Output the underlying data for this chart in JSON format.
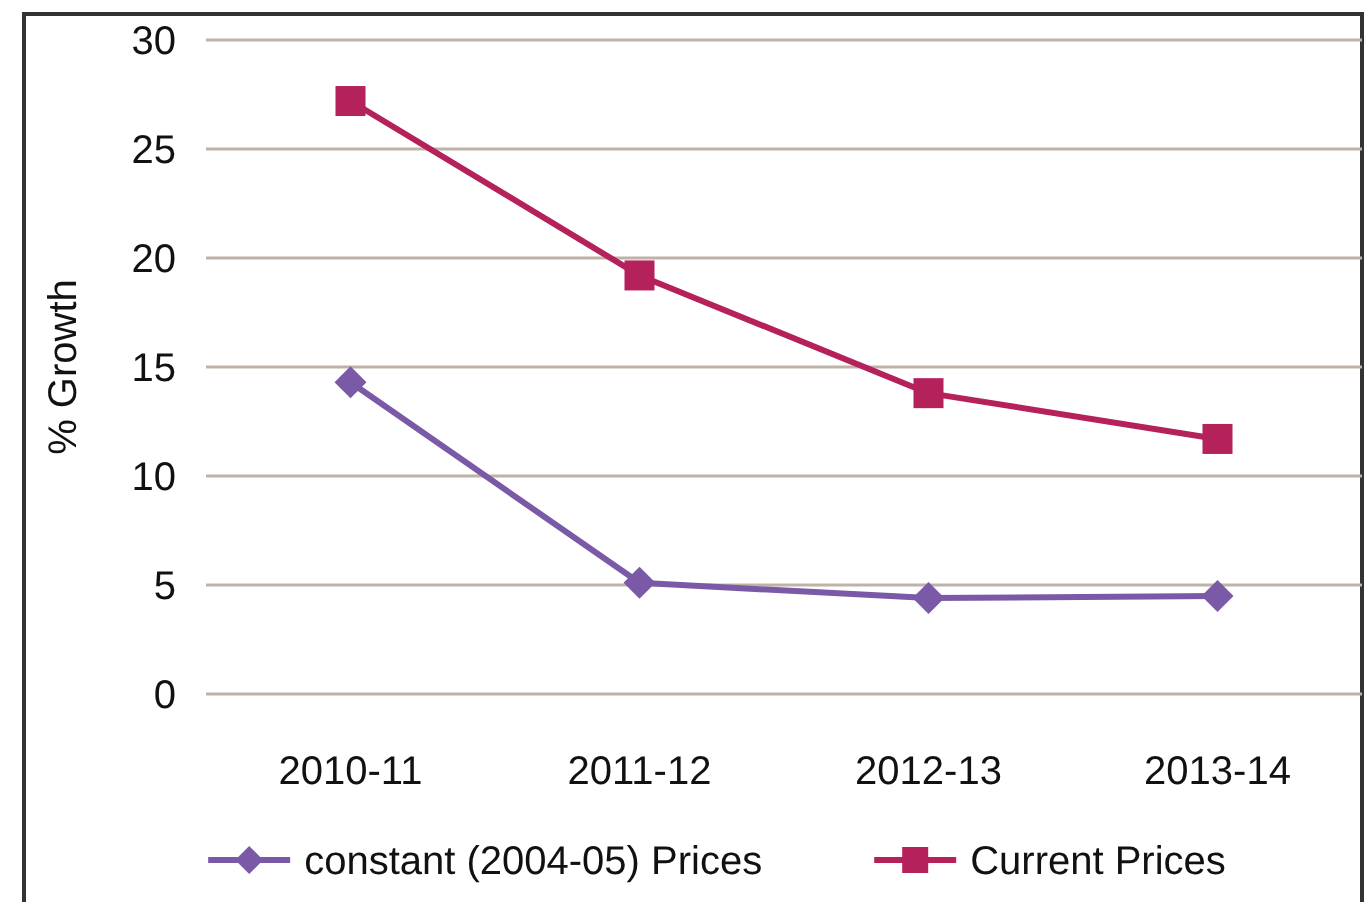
{
  "chart_data": {
    "type": "line",
    "ylabel": "% Growth",
    "categories": [
      "2010-11",
      "2011-12",
      "2012-13",
      "2013-14"
    ],
    "series": [
      {
        "name": "constant (2004-05) Prices",
        "color": "#7a5aa6",
        "marker": "diamond",
        "values": [
          14.3,
          5.1,
          4.4,
          4.5
        ]
      },
      {
        "name": "Current Prices",
        "color": "#b5215a",
        "marker": "square",
        "values": [
          27.2,
          19.2,
          13.8,
          11.7
        ]
      }
    ],
    "ylim": [
      0,
      30
    ],
    "yticks": [
      0,
      5,
      10,
      15,
      20,
      25,
      30
    ],
    "grid": "y",
    "legend": "bottom"
  }
}
